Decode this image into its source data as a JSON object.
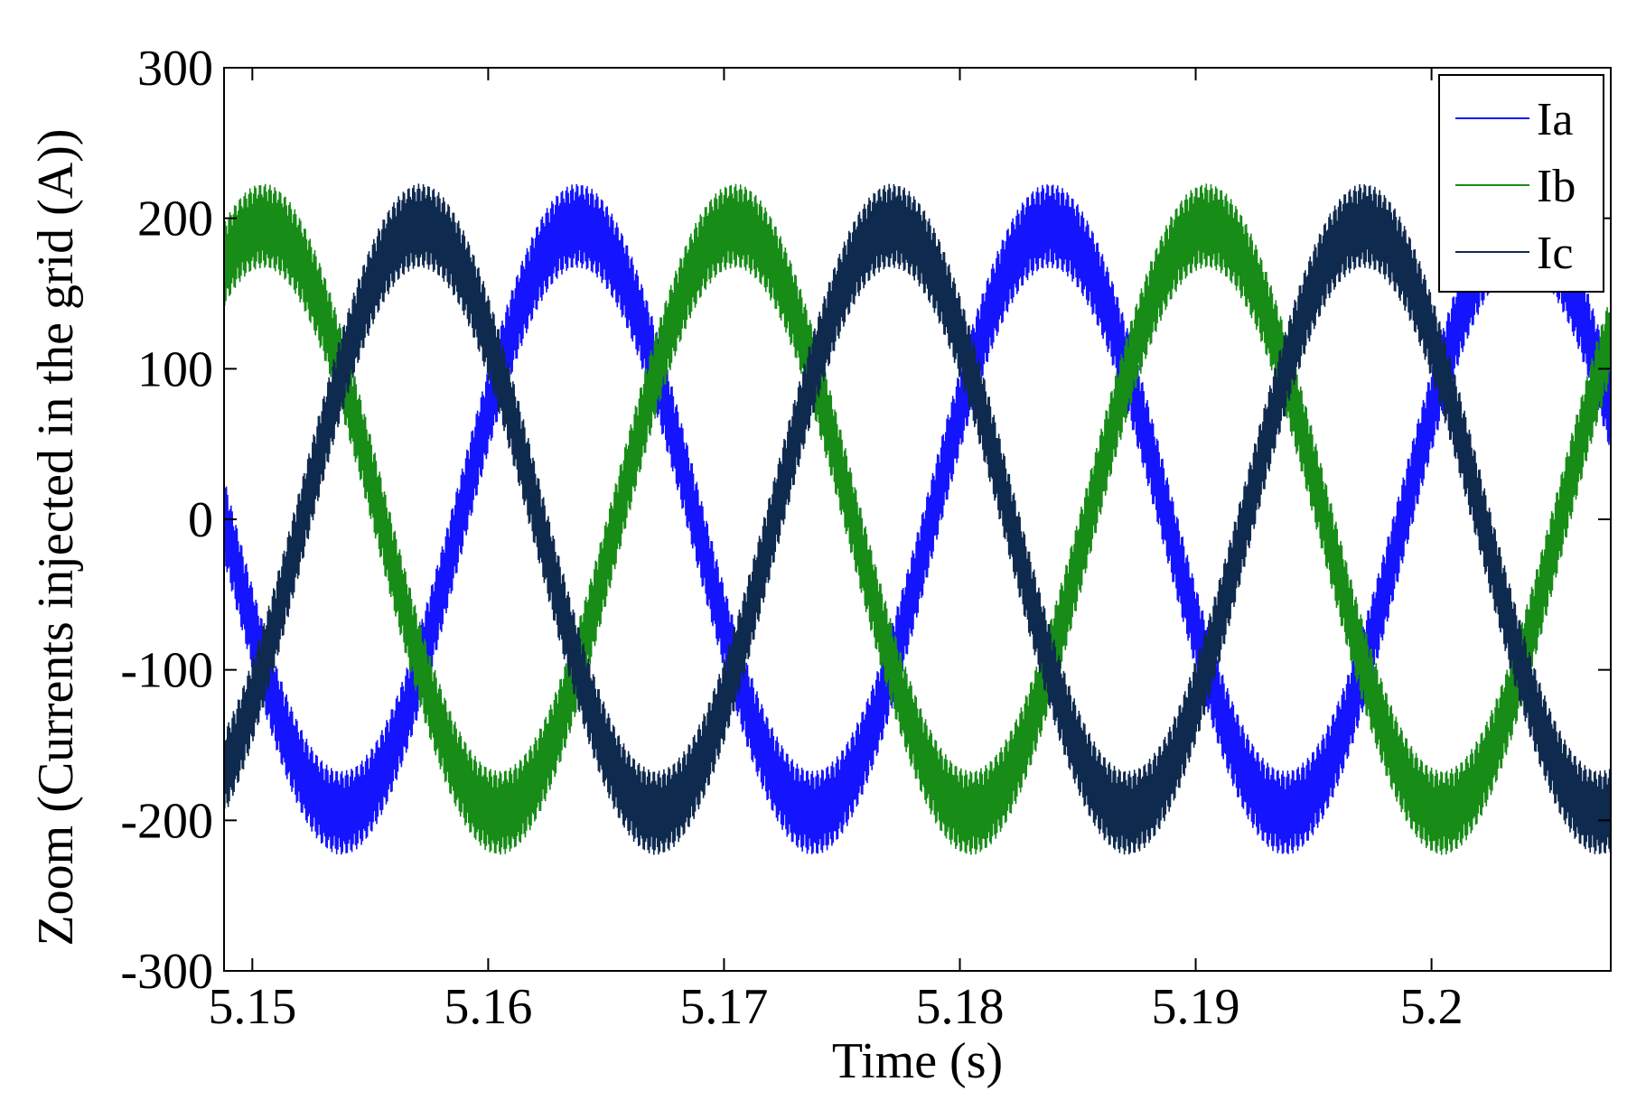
{
  "chart_data": {
    "type": "line",
    "title": "",
    "xlabel": "Time (s)",
    "ylabel": "Zoom (Currents injected in the grid (A))",
    "xlim": [
      5.1488,
      5.2076
    ],
    "ylim": [
      -300,
      300
    ],
    "xticks": [
      5.15,
      5.16,
      5.17,
      5.18,
      5.19,
      5.2
    ],
    "xtick_labels": [
      "5.15",
      "5.16",
      "5.17",
      "5.18",
      "5.19",
      "5.2"
    ],
    "yticks": [
      300,
      200,
      100,
      0,
      -100,
      -200,
      -300
    ],
    "ytick_labels": [
      "300",
      "200",
      "100",
      "0",
      "-100",
      "-200",
      "-300"
    ],
    "grid": false,
    "legend_position": "top-right",
    "series": [
      {
        "name": "Ia",
        "color": "#1414ff",
        "amplitude": 195,
        "phase_deg": 0,
        "ripple": 28
      },
      {
        "name": "Ib",
        "color": "#178c17",
        "amplitude": 195,
        "phase_deg": -120,
        "ripple": 28
      },
      {
        "name": "Ic",
        "color": "#0f2a4f",
        "amplitude": 195,
        "phase_deg": 120,
        "ripple": 28
      }
    ],
    "frequency_hz": 50,
    "zero_crossing_rising_Ia": 5.1588
  }
}
